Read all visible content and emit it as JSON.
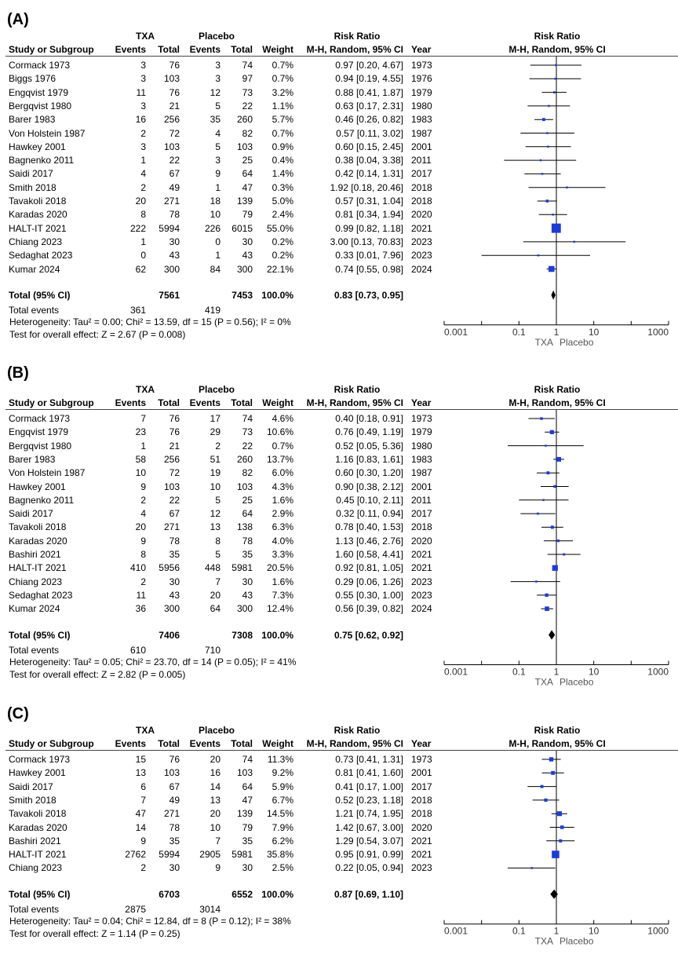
{
  "chart_data": [
    {
      "type": "forest",
      "panel_label": "(A)",
      "headers": {
        "group1": "TXA",
        "group2": "Placebo",
        "study": "Study or Subgroup",
        "events": "Events",
        "total": "Total",
        "weight": "Weight",
        "rr_title": "Risk Ratio",
        "rr_method": "M-H, Random, 95% CI",
        "year": "Year",
        "plot_title": "Risk Ratio",
        "plot_method": "M-H, Random, 95% CI"
      },
      "studies": [
        {
          "name": "Cormack 1973",
          "e1": "3",
          "n1": "76",
          "e2": "3",
          "n2": "74",
          "weight": "0.7%",
          "ci": "0.97 [0.20, 4.67]",
          "year": "1973",
          "rr": 0.97,
          "lo": 0.2,
          "hi": 4.67,
          "w": 0.7
        },
        {
          "name": "Biggs 1976",
          "e1": "3",
          "n1": "103",
          "e2": "3",
          "n2": "97",
          "weight": "0.7%",
          "ci": "0.94 [0.19, 4.55]",
          "year": "1976",
          "rr": 0.94,
          "lo": 0.19,
          "hi": 4.55,
          "w": 0.7
        },
        {
          "name": "Engqvist 1979",
          "e1": "11",
          "n1": "76",
          "e2": "12",
          "n2": "73",
          "weight": "3.2%",
          "ci": "0.88 [0.41, 1.87]",
          "year": "1979",
          "rr": 0.88,
          "lo": 0.41,
          "hi": 1.87,
          "w": 3.2
        },
        {
          "name": "Bergqvist 1980",
          "e1": "3",
          "n1": "21",
          "e2": "5",
          "n2": "22",
          "weight": "1.1%",
          "ci": "0.63 [0.17, 2.31]",
          "year": "1980",
          "rr": 0.63,
          "lo": 0.17,
          "hi": 2.31,
          "w": 1.1
        },
        {
          "name": "Barer 1983",
          "e1": "16",
          "n1": "256",
          "e2": "35",
          "n2": "260",
          "weight": "5.7%",
          "ci": "0.46 [0.26, 0.82]",
          "year": "1983",
          "rr": 0.46,
          "lo": 0.26,
          "hi": 0.82,
          "w": 5.7
        },
        {
          "name": "Von Holstein 1987",
          "e1": "2",
          "n1": "72",
          "e2": "4",
          "n2": "82",
          "weight": "0.7%",
          "ci": "0.57 [0.11, 3.02]",
          "year": "1987",
          "rr": 0.57,
          "lo": 0.11,
          "hi": 3.02,
          "w": 0.7
        },
        {
          "name": "Hawkey 2001",
          "e1": "3",
          "n1": "103",
          "e2": "5",
          "n2": "103",
          "weight": "0.9%",
          "ci": "0.60 [0.15, 2.45]",
          "year": "2001",
          "rr": 0.6,
          "lo": 0.15,
          "hi": 2.45,
          "w": 0.9
        },
        {
          "name": "Bagnenko 2011",
          "e1": "1",
          "n1": "22",
          "e2": "3",
          "n2": "25",
          "weight": "0.4%",
          "ci": "0.38 [0.04, 3.38]",
          "year": "2011",
          "rr": 0.38,
          "lo": 0.04,
          "hi": 3.38,
          "w": 0.4
        },
        {
          "name": "Saidi 2017",
          "e1": "4",
          "n1": "67",
          "e2": "9",
          "n2": "64",
          "weight": "1.4%",
          "ci": "0.42 [0.14, 1.31]",
          "year": "2017",
          "rr": 0.42,
          "lo": 0.14,
          "hi": 1.31,
          "w": 1.4
        },
        {
          "name": "Smith 2018",
          "e1": "2",
          "n1": "49",
          "e2": "1",
          "n2": "47",
          "weight": "0.3%",
          "ci": "1.92 [0.18, 20.46]",
          "year": "2018",
          "rr": 1.92,
          "lo": 0.18,
          "hi": 20.46,
          "w": 0.3
        },
        {
          "name": "Tavakoli 2018",
          "e1": "20",
          "n1": "271",
          "e2": "18",
          "n2": "139",
          "weight": "5.0%",
          "ci": "0.57 [0.31, 1.04]",
          "year": "2018",
          "rr": 0.57,
          "lo": 0.31,
          "hi": 1.04,
          "w": 5.0
        },
        {
          "name": "Karadas 2020",
          "e1": "8",
          "n1": "78",
          "e2": "10",
          "n2": "79",
          "weight": "2.4%",
          "ci": "0.81 [0.34, 1.94]",
          "year": "2020",
          "rr": 0.81,
          "lo": 0.34,
          "hi": 1.94,
          "w": 2.4
        },
        {
          "name": "HALT-IT 2021",
          "e1": "222",
          "n1": "5994",
          "e2": "226",
          "n2": "6015",
          "weight": "55.0%",
          "ci": "0.99 [0.82, 1.18]",
          "year": "2021",
          "rr": 0.99,
          "lo": 0.82,
          "hi": 1.18,
          "w": 55.0
        },
        {
          "name": "Chiang 2023",
          "e1": "1",
          "n1": "30",
          "e2": "0",
          "n2": "30",
          "weight": "0.2%",
          "ci": "3.00 [0.13, 70.83]",
          "year": "2023",
          "rr": 3.0,
          "lo": 0.13,
          "hi": 70.83,
          "w": 0.2
        },
        {
          "name": "Sedaghat 2023",
          "e1": "0",
          "n1": "43",
          "e2": "1",
          "n2": "43",
          "weight": "0.2%",
          "ci": "0.33 [0.01, 7.96]",
          "year": "2023",
          "rr": 0.33,
          "lo": 0.01,
          "hi": 7.96,
          "w": 0.2
        },
        {
          "name": "Kumar 2024",
          "e1": "62",
          "n1": "300",
          "e2": "84",
          "n2": "300",
          "weight": "22.1%",
          "ci": "0.74 [0.55, 0.98]",
          "year": "2024",
          "rr": 0.74,
          "lo": 0.55,
          "hi": 0.98,
          "w": 22.1
        }
      ],
      "total": {
        "label": "Total (95% CI)",
        "n1": "7561",
        "n2": "7453",
        "weight": "100.0%",
        "ci": "0.83 [0.73, 0.95]",
        "rr": 0.83,
        "lo": 0.73,
        "hi": 0.95
      },
      "total_events": {
        "label": "Total events",
        "e1": "361",
        "e2": "419"
      },
      "heterogeneity": "Heterogeneity: Tau² = 0.00; Chi² = 13.59, df = 15 (P = 0.56); I² = 0%",
      "overall_test": "Test for overall effect: Z = 2.67 (P = 0.008)",
      "axis": {
        "scale": "log",
        "ticks": [
          "0.001",
          "0.1",
          "1",
          "10",
          "1000"
        ],
        "tick_values": [
          0.001,
          0.1,
          1,
          10,
          1000
        ],
        "xlim": [
          0.001,
          1000
        ],
        "left_label": "TXA",
        "right_label": "Placebo"
      }
    },
    {
      "type": "forest",
      "panel_label": "(B)",
      "headers": {
        "group1": "TXA",
        "group2": "Placebo",
        "study": "Study or Subgroup",
        "events": "Events",
        "total": "Total",
        "weight": "Weight",
        "rr_title": "Risk Ratio",
        "rr_method": "M-H, Random, 95% CI",
        "year": "Year",
        "plot_title": "Risk Ratio",
        "plot_method": "M-H, Random, 95% CI"
      },
      "studies": [
        {
          "name": "Cormack 1973",
          "e1": "7",
          "n1": "76",
          "e2": "17",
          "n2": "74",
          "weight": "4.6%",
          "ci": "0.40 [0.18, 0.91]",
          "year": "1973",
          "rr": 0.4,
          "lo": 0.18,
          "hi": 0.91,
          "w": 4.6
        },
        {
          "name": "Engqvist 1979",
          "e1": "23",
          "n1": "76",
          "e2": "29",
          "n2": "73",
          "weight": "10.6%",
          "ci": "0.76 [0.49, 1.19]",
          "year": "1979",
          "rr": 0.76,
          "lo": 0.49,
          "hi": 1.19,
          "w": 10.6
        },
        {
          "name": "Bergqvist 1980",
          "e1": "1",
          "n1": "21",
          "e2": "2",
          "n2": "22",
          "weight": "0.7%",
          "ci": "0.52 [0.05, 5.36]",
          "year": "1980",
          "rr": 0.52,
          "lo": 0.05,
          "hi": 5.36,
          "w": 0.7
        },
        {
          "name": "Barer 1983",
          "e1": "58",
          "n1": "256",
          "e2": "51",
          "n2": "260",
          "weight": "13.7%",
          "ci": "1.16 [0.83, 1.61]",
          "year": "1983",
          "rr": 1.16,
          "lo": 0.83,
          "hi": 1.61,
          "w": 13.7
        },
        {
          "name": "Von Holstein 1987",
          "e1": "10",
          "n1": "72",
          "e2": "19",
          "n2": "82",
          "weight": "6.0%",
          "ci": "0.60 [0.30, 1.20]",
          "year": "1987",
          "rr": 0.6,
          "lo": 0.3,
          "hi": 1.2,
          "w": 6.0
        },
        {
          "name": "Hawkey 2001",
          "e1": "9",
          "n1": "103",
          "e2": "10",
          "n2": "103",
          "weight": "4.3%",
          "ci": "0.90 [0.38, 2.12]",
          "year": "2001",
          "rr": 0.9,
          "lo": 0.38,
          "hi": 2.12,
          "w": 4.3
        },
        {
          "name": "Bagnenko 2011",
          "e1": "2",
          "n1": "22",
          "e2": "5",
          "n2": "25",
          "weight": "1.6%",
          "ci": "0.45 [0.10, 2.11]",
          "year": "2011",
          "rr": 0.45,
          "lo": 0.1,
          "hi": 2.11,
          "w": 1.6
        },
        {
          "name": "Saidi 2017",
          "e1": "4",
          "n1": "67",
          "e2": "12",
          "n2": "64",
          "weight": "2.9%",
          "ci": "0.32 [0.11, 0.94]",
          "year": "2017",
          "rr": 0.32,
          "lo": 0.11,
          "hi": 0.94,
          "w": 2.9
        },
        {
          "name": "Tavakoli 2018",
          "e1": "20",
          "n1": "271",
          "e2": "13",
          "n2": "138",
          "weight": "6.3%",
          "ci": "0.78 [0.40, 1.53]",
          "year": "2018",
          "rr": 0.78,
          "lo": 0.4,
          "hi": 1.53,
          "w": 6.3
        },
        {
          "name": "Karadas 2020",
          "e1": "9",
          "n1": "78",
          "e2": "8",
          "n2": "78",
          "weight": "4.0%",
          "ci": "1.13 [0.46, 2.76]",
          "year": "2020",
          "rr": 1.13,
          "lo": 0.46,
          "hi": 2.76,
          "w": 4.0
        },
        {
          "name": "Bashiri 2021",
          "e1": "8",
          "n1": "35",
          "e2": "5",
          "n2": "35",
          "weight": "3.3%",
          "ci": "1.60 [0.58, 4.41]",
          "year": "2021",
          "rr": 1.6,
          "lo": 0.58,
          "hi": 4.41,
          "w": 3.3
        },
        {
          "name": "HALT-IT 2021",
          "e1": "410",
          "n1": "5956",
          "e2": "448",
          "n2": "5981",
          "weight": "20.5%",
          "ci": "0.92 [0.81, 1.05]",
          "year": "2021",
          "rr": 0.92,
          "lo": 0.81,
          "hi": 1.05,
          "w": 20.5
        },
        {
          "name": "Chiang 2023",
          "e1": "2",
          "n1": "30",
          "e2": "7",
          "n2": "30",
          "weight": "1.6%",
          "ci": "0.29 [0.06, 1.26]",
          "year": "2023",
          "rr": 0.29,
          "lo": 0.06,
          "hi": 1.26,
          "w": 1.6
        },
        {
          "name": "Sedaghat 2023",
          "e1": "11",
          "n1": "43",
          "e2": "20",
          "n2": "43",
          "weight": "7.3%",
          "ci": "0.55 [0.30, 1.00]",
          "year": "2023",
          "rr": 0.55,
          "lo": 0.3,
          "hi": 1.0,
          "w": 7.3
        },
        {
          "name": "Kumar 2024",
          "e1": "36",
          "n1": "300",
          "e2": "64",
          "n2": "300",
          "weight": "12.4%",
          "ci": "0.56 [0.39, 0.82]",
          "year": "2024",
          "rr": 0.56,
          "lo": 0.39,
          "hi": 0.82,
          "w": 12.4
        }
      ],
      "total": {
        "label": "Total (95% CI)",
        "n1": "7406",
        "n2": "7308",
        "weight": "100.0%",
        "ci": "0.75 [0.62, 0.92]",
        "rr": 0.75,
        "lo": 0.62,
        "hi": 0.92
      },
      "total_events": {
        "label": "Total events",
        "e1": "610",
        "e2": "710"
      },
      "heterogeneity": "Heterogeneity: Tau² = 0.05; Chi² = 23.70, df = 14 (P = 0.05); I² = 41%",
      "overall_test": "Test for overall effect: Z = 2.82 (P = 0.005)",
      "axis": {
        "scale": "log",
        "ticks": [
          "0.001",
          "0.1",
          "1",
          "10",
          "1000"
        ],
        "tick_values": [
          0.001,
          0.1,
          1,
          10,
          1000
        ],
        "xlim": [
          0.001,
          1000
        ],
        "left_label": "TXA",
        "right_label": "Placebo"
      }
    },
    {
      "type": "forest",
      "panel_label": "(C)",
      "headers": {
        "group1": "TXA",
        "group2": "Placebo",
        "study": "Study or Subgroup",
        "events": "Events",
        "total": "Total",
        "weight": "Weight",
        "rr_title": "Risk Ratio",
        "rr_method": "M-H, Random, 95% CI",
        "year": "Year",
        "plot_title": "Risk Ratio",
        "plot_method": "M-H, Random, 95% CI"
      },
      "studies": [
        {
          "name": "Cormack 1973",
          "e1": "15",
          "n1": "76",
          "e2": "20",
          "n2": "74",
          "weight": "11.3%",
          "ci": "0.73 [0.41, 1.31]",
          "year": "1973",
          "rr": 0.73,
          "lo": 0.41,
          "hi": 1.31,
          "w": 11.3
        },
        {
          "name": "Hawkey 2001",
          "e1": "13",
          "n1": "103",
          "e2": "16",
          "n2": "103",
          "weight": "9.2%",
          "ci": "0.81 [0.41, 1.60]",
          "year": "2001",
          "rr": 0.81,
          "lo": 0.41,
          "hi": 1.6,
          "w": 9.2
        },
        {
          "name": "Saidi 2017",
          "e1": "6",
          "n1": "67",
          "e2": "14",
          "n2": "64",
          "weight": "5.9%",
          "ci": "0.41 [0.17, 1.00]",
          "year": "2017",
          "rr": 0.41,
          "lo": 0.17,
          "hi": 1.0,
          "w": 5.9
        },
        {
          "name": "Smith 2018",
          "e1": "7",
          "n1": "49",
          "e2": "13",
          "n2": "47",
          "weight": "6.7%",
          "ci": "0.52 [0.23, 1.18]",
          "year": "2018",
          "rr": 0.52,
          "lo": 0.23,
          "hi": 1.18,
          "w": 6.7
        },
        {
          "name": "Tavakoli 2018",
          "e1": "47",
          "n1": "271",
          "e2": "20",
          "n2": "139",
          "weight": "14.5%",
          "ci": "1.21 [0.74, 1.95]",
          "year": "2018",
          "rr": 1.21,
          "lo": 0.74,
          "hi": 1.95,
          "w": 14.5
        },
        {
          "name": "Karadas 2020",
          "e1": "14",
          "n1": "78",
          "e2": "10",
          "n2": "79",
          "weight": "7.9%",
          "ci": "1.42 [0.67, 3.00]",
          "year": "2020",
          "rr": 1.42,
          "lo": 0.67,
          "hi": 3.0,
          "w": 7.9
        },
        {
          "name": "Bashiri 2021",
          "e1": "9",
          "n1": "35",
          "e2": "7",
          "n2": "35",
          "weight": "6.2%",
          "ci": "1.29 [0.54, 3.07]",
          "year": "2021",
          "rr": 1.29,
          "lo": 0.54,
          "hi": 3.07,
          "w": 6.2
        },
        {
          "name": "HALT-IT 2021",
          "e1": "2762",
          "n1": "5994",
          "e2": "2905",
          "n2": "5981",
          "weight": "35.8%",
          "ci": "0.95 [0.91, 0.99]",
          "year": "2021",
          "rr": 0.95,
          "lo": 0.91,
          "hi": 0.99,
          "w": 35.8
        },
        {
          "name": "Chiang 2023",
          "e1": "2",
          "n1": "30",
          "e2": "9",
          "n2": "30",
          "weight": "2.5%",
          "ci": "0.22 [0.05, 0.94]",
          "year": "2023",
          "rr": 0.22,
          "lo": 0.05,
          "hi": 0.94,
          "w": 2.5
        }
      ],
      "total": {
        "label": "Total (95% CI)",
        "n1": "6703",
        "n2": "6552",
        "weight": "100.0%",
        "ci": "0.87 [0.69, 1.10]",
        "rr": 0.87,
        "lo": 0.69,
        "hi": 1.1
      },
      "total_events": {
        "label": "Total events",
        "e1": "2875",
        "e2": "3014"
      },
      "heterogeneity": "Heterogeneity: Tau² = 0.04; Chi² = 12.84, df = 8 (P = 0.12); I² = 38%",
      "overall_test": "Test for overall effect: Z = 1.14 (P = 0.25)",
      "axis": {
        "scale": "log",
        "ticks": [
          "0.001",
          "0.1",
          "1",
          "10",
          "1000"
        ],
        "tick_values": [
          0.001,
          0.1,
          1,
          10,
          1000
        ],
        "xlim": [
          0.001,
          1000
        ],
        "left_label": "TXA",
        "right_label": "Placebo"
      }
    }
  ],
  "colors": {
    "marker": "#1f3bd6",
    "line": "#000000",
    "rule": "#444444"
  }
}
